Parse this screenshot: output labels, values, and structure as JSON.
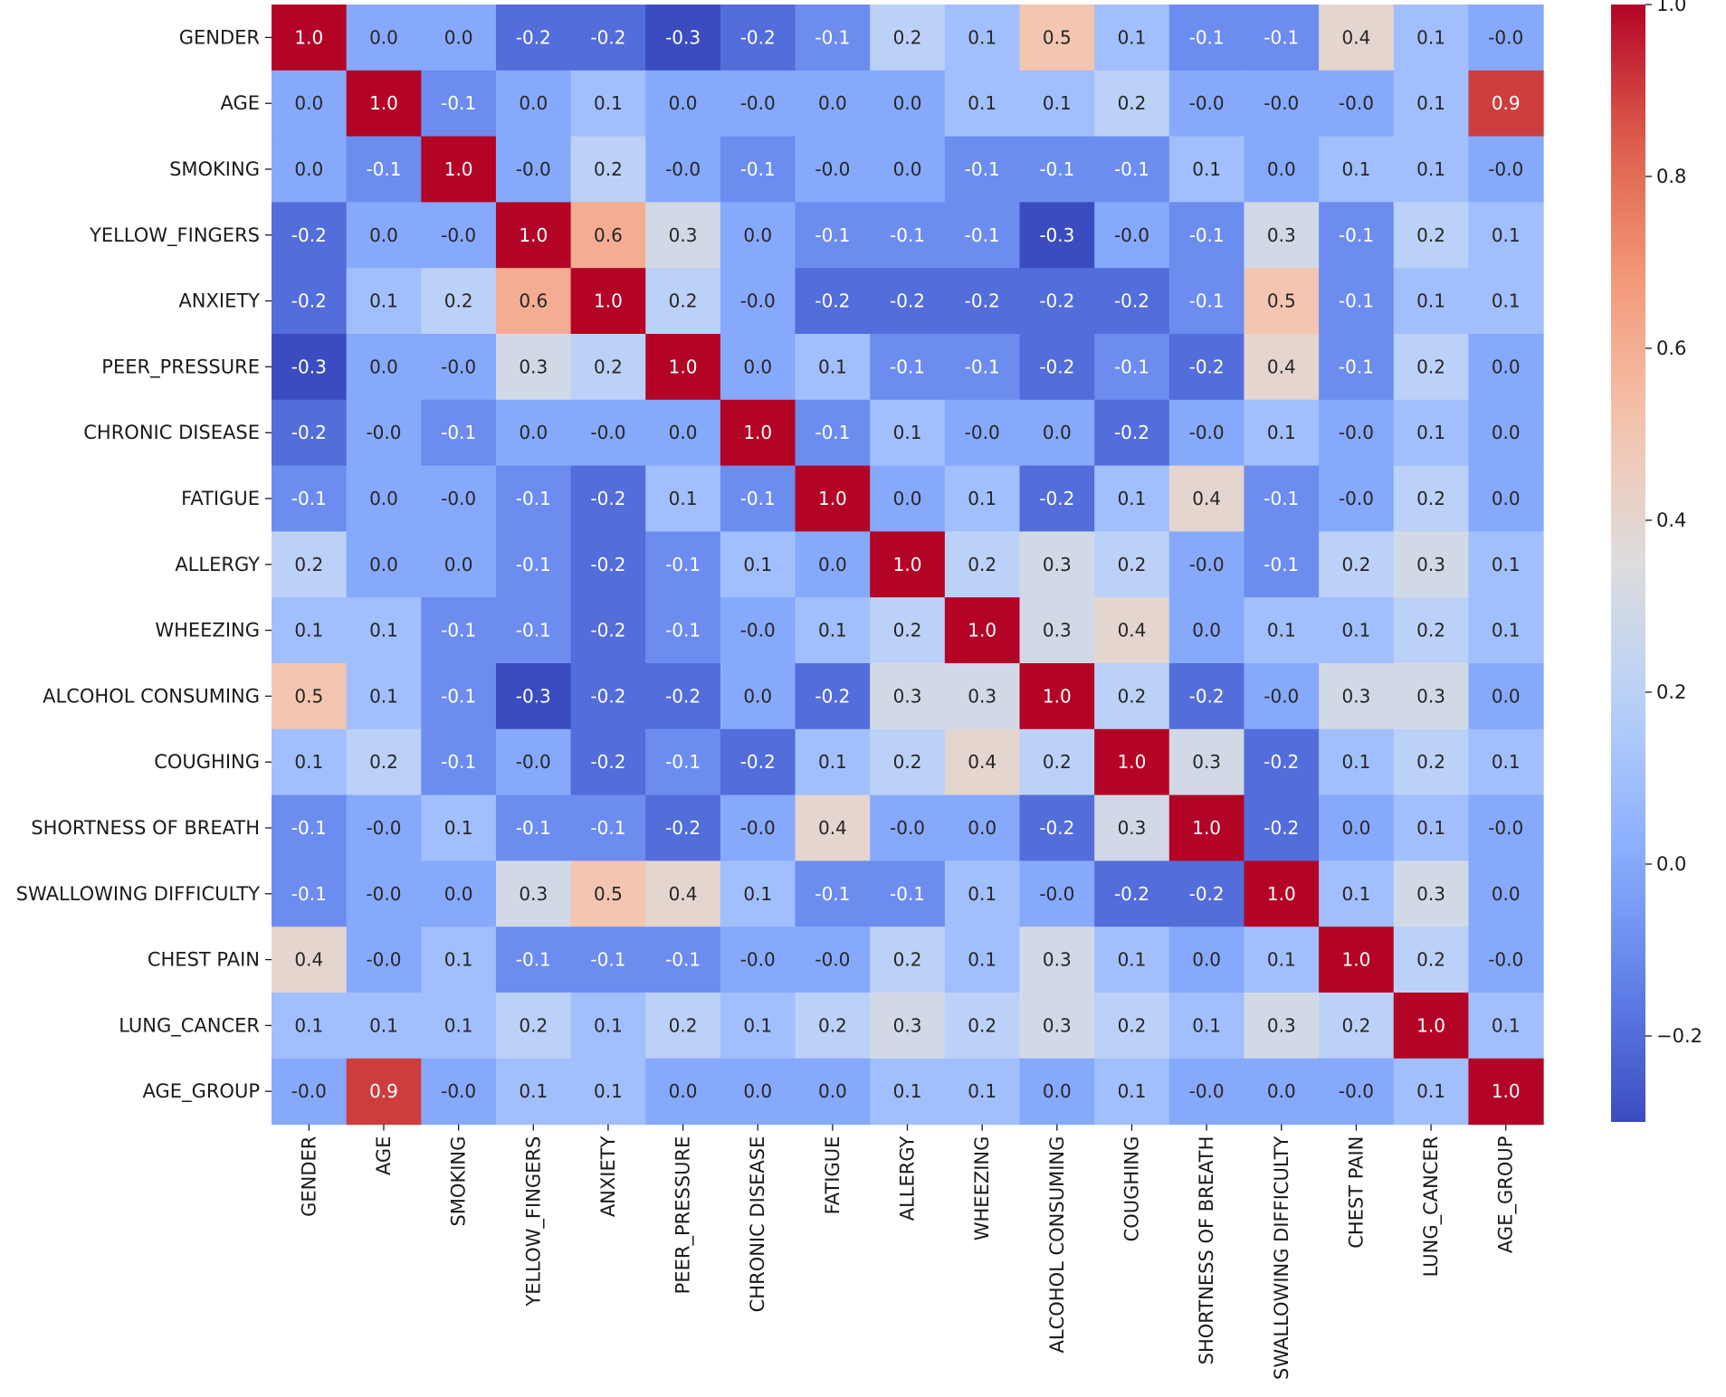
{
  "chart_data": {
    "type": "heatmap",
    "title": "",
    "xlabel": "",
    "ylabel": "",
    "colormap": "coolwarm",
    "vmin": -0.3,
    "vmax": 1.0,
    "labels": [
      "GENDER",
      "AGE",
      "SMOKING",
      "YELLOW_FINGERS",
      "ANXIETY",
      "PEER_PRESSURE",
      "CHRONIC DISEASE",
      "FATIGUE ",
      "ALLERGY ",
      "WHEEZING",
      "ALCOHOL CONSUMING",
      "COUGHING",
      "SHORTNESS OF BREATH",
      "SWALLOWING DIFFICULTY",
      "CHEST PAIN",
      "LUNG_CANCER",
      "AGE_GROUP"
    ],
    "matrix": [
      [
        1.0,
        0.0,
        0.0,
        -0.2,
        -0.2,
        -0.3,
        -0.2,
        -0.1,
        0.2,
        0.1,
        0.5,
        0.1,
        -0.1,
        -0.1,
        0.4,
        0.1,
        -0.0
      ],
      [
        0.0,
        1.0,
        -0.1,
        0.0,
        0.1,
        0.0,
        -0.0,
        0.0,
        0.0,
        0.1,
        0.1,
        0.2,
        -0.0,
        -0.0,
        -0.0,
        0.1,
        0.9
      ],
      [
        0.0,
        -0.1,
        1.0,
        -0.0,
        0.2,
        -0.0,
        -0.1,
        -0.0,
        0.0,
        -0.1,
        -0.1,
        -0.1,
        0.1,
        0.0,
        0.1,
        0.1,
        -0.0
      ],
      [
        -0.2,
        0.0,
        -0.0,
        1.0,
        0.6,
        0.3,
        0.0,
        -0.1,
        -0.1,
        -0.1,
        -0.3,
        -0.0,
        -0.1,
        0.3,
        -0.1,
        0.2,
        0.1
      ],
      [
        -0.2,
        0.1,
        0.2,
        0.6,
        1.0,
        0.2,
        -0.0,
        -0.2,
        -0.2,
        -0.2,
        -0.2,
        -0.2,
        -0.1,
        0.5,
        -0.1,
        0.1,
        0.1
      ],
      [
        -0.3,
        0.0,
        -0.0,
        0.3,
        0.2,
        1.0,
        0.0,
        0.1,
        -0.1,
        -0.1,
        -0.2,
        -0.1,
        -0.2,
        0.4,
        -0.1,
        0.2,
        0.0
      ],
      [
        -0.2,
        -0.0,
        -0.1,
        0.0,
        -0.0,
        0.0,
        1.0,
        -0.1,
        0.1,
        -0.0,
        0.0,
        -0.2,
        -0.0,
        0.1,
        -0.0,
        0.1,
        0.0
      ],
      [
        -0.1,
        0.0,
        -0.0,
        -0.1,
        -0.2,
        0.1,
        -0.1,
        1.0,
        0.0,
        0.1,
        -0.2,
        0.1,
        0.4,
        -0.1,
        -0.0,
        0.2,
        0.0
      ],
      [
        0.2,
        0.0,
        0.0,
        -0.1,
        -0.2,
        -0.1,
        0.1,
        0.0,
        1.0,
        0.2,
        0.3,
        0.2,
        -0.0,
        -0.1,
        0.2,
        0.3,
        0.1
      ],
      [
        0.1,
        0.1,
        -0.1,
        -0.1,
        -0.2,
        -0.1,
        -0.0,
        0.1,
        0.2,
        1.0,
        0.3,
        0.4,
        0.0,
        0.1,
        0.1,
        0.2,
        0.1
      ],
      [
        0.5,
        0.1,
        -0.1,
        -0.3,
        -0.2,
        -0.2,
        0.0,
        -0.2,
        0.3,
        0.3,
        1.0,
        0.2,
        -0.2,
        -0.0,
        0.3,
        0.3,
        0.0
      ],
      [
        0.1,
        0.2,
        -0.1,
        -0.0,
        -0.2,
        -0.1,
        -0.2,
        0.1,
        0.2,
        0.4,
        0.2,
        1.0,
        0.3,
        -0.2,
        0.1,
        0.2,
        0.1
      ],
      [
        -0.1,
        -0.0,
        0.1,
        -0.1,
        -0.1,
        -0.2,
        -0.0,
        0.4,
        -0.0,
        0.0,
        -0.2,
        0.3,
        1.0,
        -0.2,
        0.0,
        0.1,
        -0.0
      ],
      [
        -0.1,
        -0.0,
        0.0,
        0.3,
        0.5,
        0.4,
        0.1,
        -0.1,
        -0.1,
        0.1,
        -0.0,
        -0.2,
        -0.2,
        1.0,
        0.1,
        0.3,
        0.0
      ],
      [
        0.4,
        -0.0,
        0.1,
        -0.1,
        -0.1,
        -0.1,
        -0.0,
        -0.0,
        0.2,
        0.1,
        0.3,
        0.1,
        0.0,
        0.1,
        1.0,
        0.2,
        -0.0
      ],
      [
        0.1,
        0.1,
        0.1,
        0.2,
        0.1,
        0.2,
        0.1,
        0.2,
        0.3,
        0.2,
        0.3,
        0.2,
        0.1,
        0.3,
        0.2,
        1.0,
        0.1
      ],
      [
        -0.0,
        0.9,
        -0.0,
        0.1,
        0.1,
        0.0,
        0.0,
        0.0,
        0.1,
        0.1,
        0.0,
        0.1,
        -0.0,
        0.0,
        -0.0,
        0.1,
        1.0
      ]
    ],
    "cell_labels": [
      [
        "1.0",
        "0.0",
        "0.0",
        "-0.2",
        "-0.2",
        "-0.3",
        "-0.2",
        "-0.1",
        "0.2",
        "0.1",
        "0.5",
        "0.1",
        "-0.1",
        "-0.1",
        "0.4",
        "0.1",
        "-0.0"
      ],
      [
        "0.0",
        "1.0",
        "-0.1",
        "0.0",
        "0.1",
        "0.0",
        "-0.0",
        "0.0",
        "0.0",
        "0.1",
        "0.1",
        "0.2",
        "-0.0",
        "-0.0",
        "-0.0",
        "0.1",
        "0.9"
      ],
      [
        "0.0",
        "-0.1",
        "1.0",
        "-0.0",
        "0.2",
        "-0.0",
        "-0.1",
        "-0.0",
        "0.0",
        "-0.1",
        "-0.1",
        "-0.1",
        "0.1",
        "0.0",
        "0.1",
        "0.1",
        "-0.0"
      ],
      [
        "-0.2",
        "0.0",
        "-0.0",
        "1.0",
        "0.6",
        "0.3",
        "0.0",
        "-0.1",
        "-0.1",
        "-0.1",
        "-0.3",
        "-0.0",
        "-0.1",
        "0.3",
        "-0.1",
        "0.2",
        "0.1"
      ],
      [
        "-0.2",
        "0.1",
        "0.2",
        "0.6",
        "1.0",
        "0.2",
        "-0.0",
        "-0.2",
        "-0.2",
        "-0.2",
        "-0.2",
        "-0.2",
        "-0.1",
        "0.5",
        "-0.1",
        "0.1",
        "0.1"
      ],
      [
        "-0.3",
        "0.0",
        "-0.0",
        "0.3",
        "0.2",
        "1.0",
        "0.0",
        "0.1",
        "-0.1",
        "-0.1",
        "-0.2",
        "-0.1",
        "-0.2",
        "0.4",
        "-0.1",
        "0.2",
        "0.0"
      ],
      [
        "-0.2",
        "-0.0",
        "-0.1",
        "0.0",
        "-0.0",
        "0.0",
        "1.0",
        "-0.1",
        "0.1",
        "-0.0",
        "0.0",
        "-0.2",
        "-0.0",
        "0.1",
        "-0.0",
        "0.1",
        "0.0"
      ],
      [
        "-0.1",
        "0.0",
        "-0.0",
        "-0.1",
        "-0.2",
        "0.1",
        "-0.1",
        "1.0",
        "0.0",
        "0.1",
        "-0.2",
        "0.1",
        "0.4",
        "-0.1",
        "-0.0",
        "0.2",
        "0.0"
      ],
      [
        "0.2",
        "0.0",
        "0.0",
        "-0.1",
        "-0.2",
        "-0.1",
        "0.1",
        "0.0",
        "1.0",
        "0.2",
        "0.3",
        "0.2",
        "-0.0",
        "-0.1",
        "0.2",
        "0.3",
        "0.1"
      ],
      [
        "0.1",
        "0.1",
        "-0.1",
        "-0.1",
        "-0.2",
        "-0.1",
        "-0.0",
        "0.1",
        "0.2",
        "1.0",
        "0.3",
        "0.4",
        "0.0",
        "0.1",
        "0.1",
        "0.2",
        "0.1"
      ],
      [
        "0.5",
        "0.1",
        "-0.1",
        "-0.3",
        "-0.2",
        "-0.2",
        "0.0",
        "-0.2",
        "0.3",
        "0.3",
        "1.0",
        "0.2",
        "-0.2",
        "-0.0",
        "0.3",
        "0.3",
        "0.0"
      ],
      [
        "0.1",
        "0.2",
        "-0.1",
        "-0.0",
        "-0.2",
        "-0.1",
        "-0.2",
        "0.1",
        "0.2",
        "0.4",
        "0.2",
        "1.0",
        "0.3",
        "-0.2",
        "0.1",
        "0.2",
        "0.1"
      ],
      [
        "-0.1",
        "-0.0",
        "0.1",
        "-0.1",
        "-0.1",
        "-0.2",
        "-0.0",
        "0.4",
        "-0.0",
        "0.0",
        "-0.2",
        "0.3",
        "1.0",
        "-0.2",
        "0.0",
        "0.1",
        "-0.0"
      ],
      [
        "-0.1",
        "-0.0",
        "0.0",
        "0.3",
        "0.5",
        "0.4",
        "0.1",
        "-0.1",
        "-0.1",
        "0.1",
        "-0.0",
        "-0.2",
        "-0.2",
        "1.0",
        "0.1",
        "0.3",
        "0.0"
      ],
      [
        "0.4",
        "-0.0",
        "0.1",
        "-0.1",
        "-0.1",
        "-0.1",
        "-0.0",
        "-0.0",
        "0.2",
        "0.1",
        "0.3",
        "0.1",
        "0.0",
        "0.1",
        "1.0",
        "0.2",
        "-0.0"
      ],
      [
        "0.1",
        "0.1",
        "0.1",
        "0.2",
        "0.1",
        "0.2",
        "0.1",
        "0.2",
        "0.3",
        "0.2",
        "0.3",
        "0.2",
        "0.1",
        "0.3",
        "0.2",
        "1.0",
        "0.1"
      ],
      [
        "-0.0",
        "0.9",
        "-0.0",
        "0.1",
        "0.1",
        "0.0",
        "0.0",
        "0.0",
        "0.1",
        "0.1",
        "0.0",
        "0.1",
        "-0.0",
        "0.0",
        "-0.0",
        "0.1",
        "1.0"
      ]
    ],
    "colorbar": {
      "ticks": [
        1.0,
        0.8,
        0.6,
        0.4,
        0.2,
        0.0,
        -0.2
      ],
      "tick_labels": [
        "1.0",
        "0.8",
        "0.6",
        "0.4",
        "0.2",
        "0.0",
        "−0.2"
      ]
    }
  }
}
